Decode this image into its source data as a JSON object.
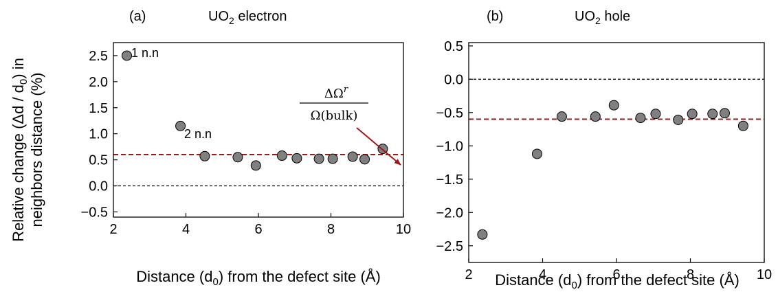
{
  "chart_data": [
    {
      "type": "scatter",
      "panel_label": "(a)",
      "title": "UO",
      "title_sub": "2",
      "title_rest": " electron",
      "xlabel": "Distance (d",
      "xlabel_sub": "0",
      "xlabel_rest": ") from the defect site (Å)",
      "ylabel_line1": "Relative change (Δd / d",
      "ylabel_line1_sub": "0",
      "ylabel_line1_rest": ") in",
      "ylabel_line2": "neighbors distance (%)",
      "xlim": [
        2,
        10
      ],
      "ylim": [
        -0.6,
        2.75
      ],
      "xticks": [
        2,
        4,
        6,
        8,
        10
      ],
      "yticks": [
        -0.5,
        0.0,
        0.5,
        1.0,
        1.5,
        2.0,
        2.5
      ],
      "ytick_labels": [
        "−0.5",
        "0.0",
        "0.5",
        "1.0",
        "1.5",
        "2.0",
        "2.5"
      ],
      "reference_lines": [
        {
          "y": 0.0,
          "color": "#000000",
          "style": "dashed"
        },
        {
          "y": 0.6,
          "color": "#a01818",
          "style": "dashed"
        }
      ],
      "point_color": "#808080",
      "series": [
        {
          "x": [
            2.37,
            3.85,
            4.52,
            5.43,
            5.93,
            6.65,
            7.06,
            7.67,
            8.05,
            8.6,
            8.93,
            9.43
          ],
          "y": [
            2.5,
            1.15,
            0.57,
            0.55,
            0.39,
            0.58,
            0.53,
            0.52,
            0.52,
            0.56,
            0.51,
            0.71
          ]
        }
      ],
      "annotations": [
        {
          "text": "1 n.n",
          "x": 2.37,
          "y": 2.5
        },
        {
          "text": "2 n.n",
          "x": 3.85,
          "y": 1.15
        }
      ],
      "fraction_annotation": {
        "numerator": "ΔΩ",
        "numerator_sup": "r",
        "denominator": "Ω(bulk)",
        "arrow_color": "#a01818"
      }
    },
    {
      "type": "scatter",
      "panel_label": "(b)",
      "title": "UO",
      "title_sub": "2",
      "title_rest": " hole",
      "xlabel": "Distance (d",
      "xlabel_sub": "0",
      "xlabel_rest": ") from the defect site (Å)",
      "xlim": [
        2,
        10
      ],
      "ylim": [
        -2.75,
        0.55
      ],
      "xticks": [
        2,
        4,
        6,
        8,
        10
      ],
      "yticks": [
        -2.5,
        -2.0,
        -1.5,
        -1.0,
        -0.5,
        0.0,
        0.5
      ],
      "ytick_labels": [
        "−2.5",
        "−2.0",
        "−1.5",
        "−1.0",
        "−0.5",
        "0.0",
        "0.5"
      ],
      "reference_lines": [
        {
          "y": 0.0,
          "color": "#000000",
          "style": "dashed"
        },
        {
          "y": -0.6,
          "color": "#a01818",
          "style": "dashed"
        }
      ],
      "point_color": "#808080",
      "series": [
        {
          "x": [
            2.37,
            3.85,
            4.52,
            5.43,
            5.93,
            6.65,
            7.06,
            7.67,
            8.05,
            8.6,
            8.93,
            9.43
          ],
          "y": [
            -2.33,
            -1.12,
            -0.56,
            -0.56,
            -0.39,
            -0.58,
            -0.52,
            -0.61,
            -0.52,
            -0.52,
            -0.51,
            -0.7
          ]
        }
      ]
    }
  ]
}
